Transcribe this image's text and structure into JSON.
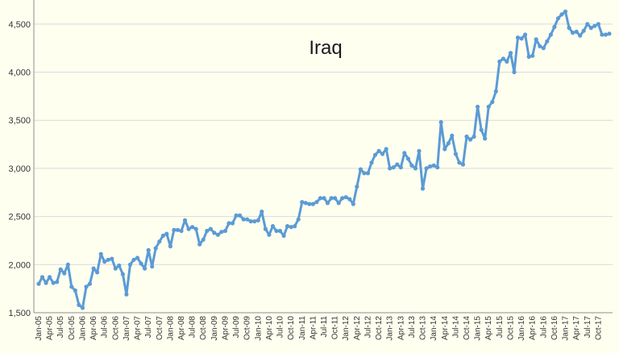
{
  "chart_data": {
    "type": "line",
    "title": "Iraq",
    "xlabel": "",
    "ylabel": "",
    "ylim": [
      1500,
      4750
    ],
    "yticks": [
      "1,500",
      "2,000",
      "2,500",
      "3,000",
      "3,500",
      "4,000",
      "4,500"
    ],
    "grid": true,
    "legend": "none",
    "line_color": "#5b9bd5",
    "background_color": "#fffff0",
    "x_start": "Jan-05",
    "x_labels": [
      "Jan-05",
      "Apr-05",
      "Jul-05",
      "Oct-05",
      "Jan-06",
      "Apr-06",
      "Jul-06",
      "Oct-06",
      "Jan-07",
      "Apr-07",
      "Jul-07",
      "Oct-07",
      "Jan-08",
      "Apr-08",
      "Jul-08",
      "Oct-08",
      "Jan-09",
      "Apr-09",
      "Jul-09",
      "Oct-09",
      "Jan-10",
      "Apr-10",
      "Jul-10",
      "Oct-10",
      "Jan-11",
      "Apr-11",
      "Jul-11",
      "Oct-11",
      "Jan-12",
      "Apr-12",
      "Jul-12",
      "Oct-12",
      "Jan-13",
      "Apr-13",
      "Jul-13",
      "Oct-13",
      "Jan-14",
      "Apr-14",
      "Jul-14",
      "Oct-14",
      "Jan-15",
      "Apr-15",
      "Jul-15",
      "Oct-15",
      "Jan-16",
      "Apr-16",
      "Jul-16",
      "Oct-16",
      "Jan-17",
      "Apr-17",
      "Jul-17",
      "Oct-17"
    ],
    "series": [
      {
        "values": [
          1800,
          1870,
          1810,
          1870,
          1810,
          1820,
          1950,
          1910,
          2000,
          1770,
          1730,
          1580,
          1550,
          1770,
          1800,
          1960,
          1920,
          2110,
          2030,
          2050,
          2060,
          1960,
          1990,
          1900,
          1690,
          2000,
          2050,
          2070,
          2010,
          1960,
          2150,
          1980,
          2170,
          2240,
          2300,
          2320,
          2190,
          2360,
          2360,
          2350,
          2460,
          2370,
          2390,
          2370,
          2210,
          2260,
          2350,
          2370,
          2330,
          2310,
          2340,
          2350,
          2430,
          2430,
          2510,
          2510,
          2470,
          2470,
          2450,
          2450,
          2460,
          2550,
          2370,
          2310,
          2400,
          2350,
          2350,
          2300,
          2400,
          2390,
          2400,
          2470,
          2650,
          2640,
          2630,
          2630,
          2650,
          2690,
          2690,
          2640,
          2690,
          2690,
          2640,
          2690,
          2700,
          2680,
          2630,
          2810,
          2990,
          2950,
          2950,
          3060,
          3140,
          3180,
          3150,
          3200,
          3000,
          3010,
          3040,
          3010,
          3160,
          3100,
          3030,
          3000,
          3180,
          2790,
          3000,
          3020,
          3030,
          3010,
          3480,
          3200,
          3260,
          3340,
          3150,
          3060,
          3040,
          3330,
          3300,
          3330,
          3640,
          3400,
          3310,
          3640,
          3690,
          3800,
          4110,
          4140,
          4110,
          4200,
          4000,
          4360,
          4350,
          4390,
          4160,
          4170,
          4340,
          4270,
          4250,
          4320,
          4390,
          4470,
          4560,
          4600,
          4630,
          4460,
          4410,
          4420,
          4380,
          4430,
          4500,
          4460,
          4480,
          4500,
          4390,
          4390,
          4400
        ]
      }
    ]
  }
}
